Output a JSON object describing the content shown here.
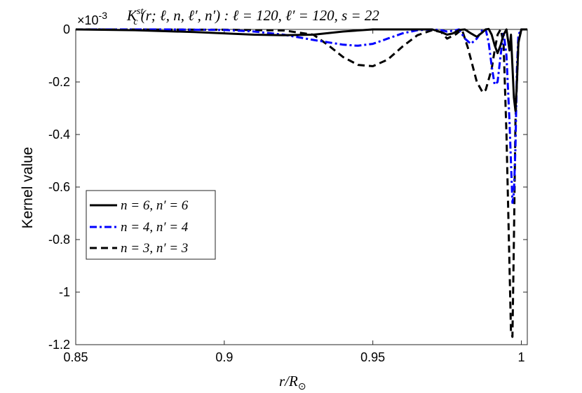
{
  "chart_data": {
    "type": "line",
    "title": "K_c^{st}(r;ℓ,n,ℓ′,n′) : ℓ = 120, ℓ′ = 120, s = 22",
    "title_display": "K",
    "title_sub": "c",
    "title_sup": "st",
    "title_rest": "(r; ℓ, n, ℓ′, n′) : ℓ = 120, ℓ′ = 120, s = 22",
    "exponent_label": "×10",
    "exponent_power": "-3",
    "xlabel": "r/R",
    "xlabel_sub": "⊙",
    "ylabel": "Kernel value",
    "xlim": [
      0.85,
      1.002
    ],
    "ylim": [
      -1.2,
      0
    ],
    "xticks": [
      0.85,
      0.9,
      0.95,
      1
    ],
    "xtick_labels": [
      "0.85",
      "0.9",
      "0.95",
      "1"
    ],
    "yticks": [
      0,
      -0.2,
      -0.4,
      -0.6,
      -0.8,
      -1,
      -1.2
    ],
    "ytick_labels": [
      "0",
      "-0.2",
      "-0.4",
      "-0.6",
      "-0.8",
      "-1",
      "-1.2"
    ],
    "grid": false,
    "legend_position": "left-middle",
    "series": [
      {
        "name": "n = 6, n′ = 6",
        "color": "#000000",
        "style": "solid",
        "x": [
          0.85,
          0.87,
          0.89,
          0.9,
          0.91,
          0.92,
          0.93,
          0.94,
          0.95,
          0.96,
          0.965,
          0.97,
          0.973,
          0.975,
          0.977,
          0.979,
          0.981,
          0.983,
          0.985,
          0.987,
          0.988,
          0.989,
          0.99,
          0.991,
          0.992,
          0.993,
          0.994,
          0.995,
          0.996,
          0.9965,
          0.997,
          0.9975,
          0.998,
          0.9985,
          0.999,
          1.0,
          1.002
        ],
        "y": [
          0,
          -0.003,
          -0.01,
          -0.015,
          -0.02,
          -0.022,
          -0.02,
          -0.008,
          0,
          0,
          0,
          0,
          -0.01,
          -0.02,
          -0.015,
          -0.002,
          0,
          -0.015,
          -0.028,
          -0.01,
          0,
          0.002,
          -0.02,
          -0.06,
          -0.09,
          -0.06,
          -0.02,
          0,
          -0.08,
          -0.02,
          -0.14,
          -0.26,
          -0.31,
          -0.2,
          -0.05,
          0,
          0
        ]
      },
      {
        "name": "n = 4, n′ = 4",
        "color": "#0000ff",
        "style": "dashdot",
        "x": [
          0.85,
          0.88,
          0.9,
          0.91,
          0.92,
          0.93,
          0.94,
          0.945,
          0.95,
          0.955,
          0.96,
          0.965,
          0.97,
          0.973,
          0.975,
          0.977,
          0.979,
          0.981,
          0.983,
          0.985,
          0.987,
          0.988,
          0.989,
          0.99,
          0.991,
          0.992,
          0.993,
          0.994,
          0.995,
          0.996,
          0.997,
          0.9975,
          0.998,
          0.9985,
          0.999,
          1.0,
          1.002
        ],
        "y": [
          0,
          0,
          -0.002,
          -0.008,
          -0.02,
          -0.04,
          -0.058,
          -0.062,
          -0.055,
          -0.035,
          -0.015,
          -0.003,
          0,
          -0.003,
          -0.008,
          -0.005,
          0,
          -0.035,
          -0.055,
          -0.035,
          0,
          0,
          -0.05,
          -0.14,
          -0.21,
          -0.2,
          -0.1,
          -0.01,
          -0.1,
          -0.35,
          -0.66,
          -0.62,
          -0.45,
          -0.15,
          -0.02,
          0,
          0
        ]
      },
      {
        "name": "n = 3, n′ = 3",
        "color": "#000000",
        "style": "dashed",
        "x": [
          0.85,
          0.9,
          0.92,
          0.93,
          0.935,
          0.94,
          0.945,
          0.95,
          0.955,
          0.96,
          0.965,
          0.97,
          0.973,
          0.975,
          0.978,
          0.98,
          0.982,
          0.985,
          0.987,
          0.988,
          0.99,
          0.991,
          0.992,
          0.993,
          0.994,
          0.995,
          0.996,
          0.9965,
          0.997,
          0.9975,
          0.998,
          0.999,
          1.0,
          1.002
        ],
        "y": [
          0,
          -0.001,
          -0.004,
          -0.02,
          -0.06,
          -0.105,
          -0.135,
          -0.14,
          -0.115,
          -0.065,
          -0.022,
          -0.003,
          -0.01,
          -0.035,
          -0.018,
          0,
          -0.07,
          -0.2,
          -0.24,
          -0.23,
          -0.15,
          -0.08,
          -0.02,
          0,
          -0.05,
          -0.4,
          -0.9,
          -1.15,
          -1.17,
          -0.8,
          -0.35,
          -0.05,
          0,
          0
        ]
      }
    ]
  }
}
